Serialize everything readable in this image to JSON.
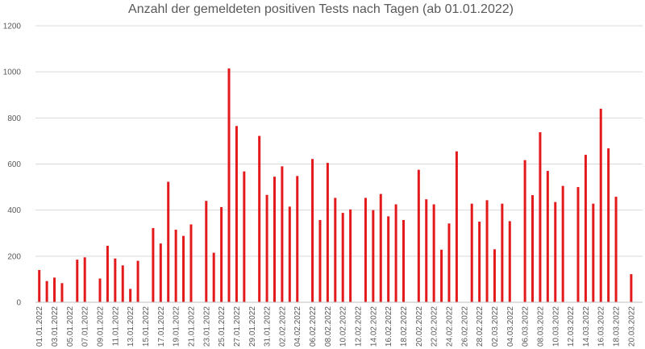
{
  "chart_data": {
    "type": "bar",
    "title": "Anzahl der gemeldeten positiven Tests nach Tagen (ab 01.01.2022)",
    "xlabel": "",
    "ylabel": "",
    "ylim": [
      0,
      1200
    ],
    "yticks": [
      0,
      200,
      400,
      600,
      800,
      1000,
      1200
    ],
    "grid": true,
    "bar_color": "#e31a1c",
    "categories": [
      "01.01.2022",
      "02.01.2022",
      "03.01.2022",
      "04.01.2022",
      "05.01.2022",
      "06.01.2022",
      "07.01.2022",
      "08.01.2022",
      "09.01.2022",
      "10.01.2022",
      "11.01.2022",
      "12.01.2022",
      "13.01.2022",
      "14.01.2022",
      "15.01.2022",
      "16.01.2022",
      "17.01.2022",
      "18.01.2022",
      "19.01.2022",
      "20.01.2022",
      "21.01.2022",
      "22.01.2022",
      "23.01.2022",
      "24.01.2022",
      "25.01.2022",
      "26.01.2022",
      "27.01.2022",
      "28.01.2022",
      "29.01.2022",
      "30.01.2022",
      "31.01.2022",
      "01.02.2022",
      "02.02.2022",
      "03.02.2022",
      "04.02.2022",
      "05.02.2022",
      "06.02.2022",
      "07.02.2022",
      "08.02.2022",
      "09.02.2022",
      "10.02.2022",
      "11.02.2022",
      "12.02.2022",
      "13.02.2022",
      "14.02.2022",
      "15.02.2022",
      "16.02.2022",
      "17.02.2022",
      "18.02.2022",
      "19.02.2022",
      "20.02.2022",
      "21.02.2022",
      "22.02.2022",
      "23.02.2022",
      "24.02.2022",
      "25.02.2022",
      "26.02.2022",
      "27.02.2022",
      "28.02.2022",
      "01.03.2022",
      "02.03.2022",
      "03.03.2022",
      "04.03.2022",
      "05.03.2022",
      "06.03.2022",
      "07.03.2022",
      "08.03.2022",
      "09.03.2022",
      "10.03.2022",
      "11.03.2022",
      "12.03.2022",
      "13.03.2022",
      "14.03.2022",
      "15.03.2022",
      "16.03.2022",
      "17.03.2022",
      "18.03.2022",
      "19.03.2022",
      "20.03.2022",
      "21.03.2022"
    ],
    "tick_labels": [
      "01.01.2022",
      "03.01.2022",
      "05.01.2022",
      "07.01.2022",
      "09.01.2022",
      "11.01.2022",
      "13.01.2022",
      "15.01.2022",
      "17.01.2022",
      "19.01.2022",
      "21.01.2022",
      "23.01.2022",
      "25.01.2022",
      "27.01.2022",
      "29.01.2022",
      "31.01.2022",
      "02.02.2022",
      "04.02.2022",
      "06.02.2022",
      "08.02.2022",
      "10.02.2022",
      "12.02.2022",
      "14.02.2022",
      "16.02.2022",
      "18.02.2022",
      "20.02.2022",
      "22.02.2022",
      "24.02.2022",
      "26.02.2022",
      "28.02.2022",
      "02.03.2022",
      "04.03.2022",
      "06.03.2022",
      "08.03.2022",
      "10.03.2022",
      "12.03.2022",
      "14.03.2022",
      "16.03.2022",
      "18.03.2022",
      "20.03.2022"
    ],
    "values": [
      140,
      92,
      107,
      83,
      0,
      185,
      195,
      0,
      103,
      245,
      190,
      160,
      58,
      180,
      0,
      322,
      255,
      523,
      315,
      288,
      338,
      0,
      440,
      215,
      413,
      1015,
      765,
      568,
      0,
      722,
      466,
      545,
      590,
      415,
      548,
      0,
      622,
      357,
      605,
      453,
      388,
      403,
      0,
      453,
      400,
      470,
      373,
      425,
      357,
      0,
      575,
      447,
      425,
      228,
      342,
      655,
      0,
      428,
      350,
      443,
      230,
      428,
      352,
      0,
      617,
      465,
      738,
      570,
      435,
      505,
      0,
      500,
      640,
      428,
      840,
      668,
      458,
      0,
      122,
      0
    ]
  }
}
